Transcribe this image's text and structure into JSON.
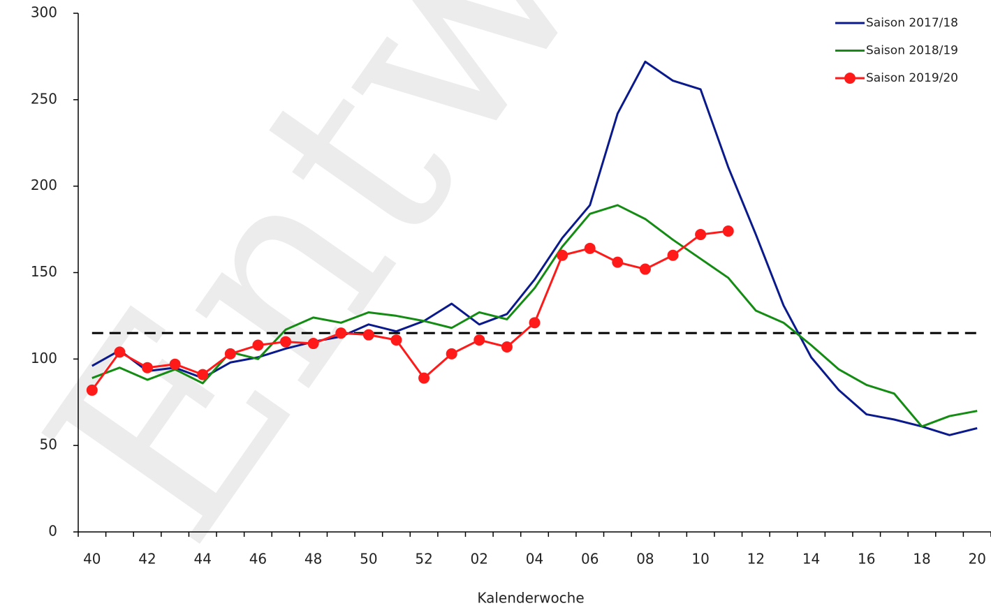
{
  "chart_data": {
    "type": "line",
    "watermark": "Entw",
    "x_label": "Kalenderwoche",
    "categories": [
      "40",
      null,
      "42",
      null,
      "44",
      null,
      "46",
      null,
      "48",
      null,
      "50",
      null,
      "52",
      null,
      "02",
      null,
      "04",
      null,
      "06",
      null,
      "08",
      null,
      "10",
      null,
      "12",
      null,
      "14",
      null,
      "16",
      null,
      "18",
      null,
      "20"
    ],
    "series": [
      {
        "name": "Saison 2017/18",
        "color": "#0a1a8c",
        "marker": false,
        "values": [
          96,
          105,
          93,
          95,
          89,
          98,
          101,
          106,
          110,
          113,
          120,
          116,
          122,
          132,
          120,
          126,
          146,
          170,
          189,
          242,
          272,
          261,
          256,
          211,
          172,
          131,
          101,
          82,
          68,
          65,
          61,
          56,
          60
        ]
      },
      {
        "name": "Saison 2018/19",
        "color": "#148c14",
        "marker": false,
        "values": [
          89,
          95,
          88,
          94,
          86,
          104,
          100,
          117,
          124,
          121,
          127,
          125,
          122,
          118,
          127,
          123,
          141,
          165,
          184,
          189,
          181,
          169,
          158,
          147,
          128,
          121,
          108,
          94,
          85,
          80,
          61,
          67,
          70
        ]
      },
      {
        "name": "Saison 2019/20",
        "color": "#ff1a1a",
        "marker": true,
        "values": [
          82,
          104,
          95,
          97,
          91,
          103,
          108,
          110,
          109,
          115,
          114,
          111,
          89,
          103,
          111,
          107,
          121,
          160,
          164,
          156,
          152,
          160,
          172,
          174,
          null,
          null,
          null,
          null,
          null,
          null,
          null,
          null,
          null
        ]
      }
    ],
    "threshold": 115,
    "ylim": [
      0,
      300
    ],
    "yticks": [
      0,
      50,
      100,
      150,
      200,
      250,
      300
    ],
    "grid": false,
    "legend": "top-right"
  }
}
